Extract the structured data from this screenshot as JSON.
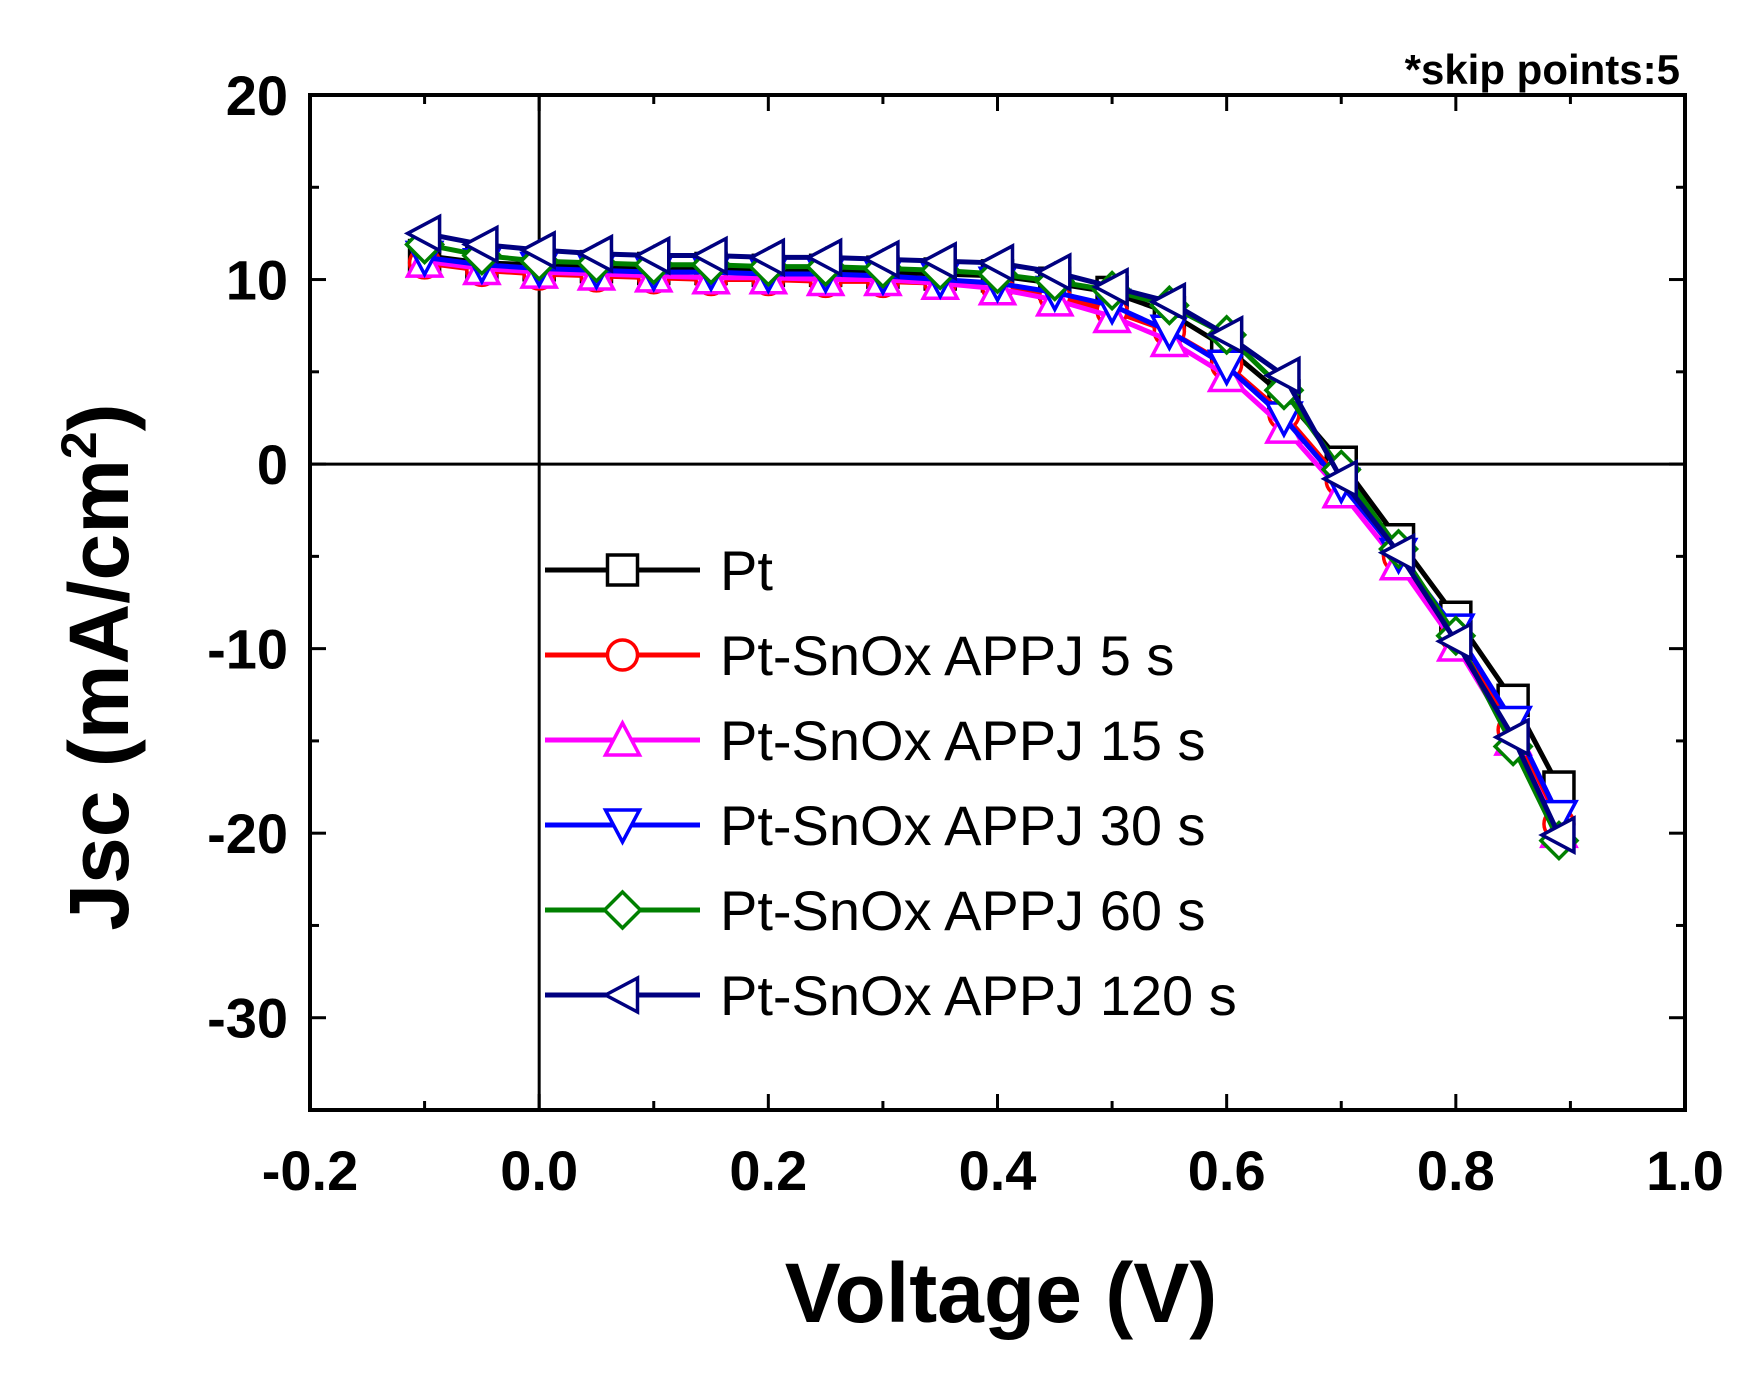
{
  "chart_data": {
    "type": "line",
    "title": "",
    "annotation": "*skip points:5",
    "xlabel": "Voltage (V)",
    "ylabel_main": "Jsc (mA/cm",
    "ylabel_sup": "2",
    "ylabel_close": ")",
    "xlim": [
      -0.2,
      1.0
    ],
    "ylim": [
      -35,
      20
    ],
    "xticks": [
      "-0.2",
      "0.0",
      "0.2",
      "0.4",
      "0.6",
      "0.8",
      "1.0"
    ],
    "yticks": [
      "20",
      "10",
      "0",
      "-10",
      "-20",
      "-30"
    ],
    "legend_position": "lower-left",
    "series": [
      {
        "name": "Pt",
        "color": "#000000",
        "marker": "square",
        "x": [
          -0.1,
          -0.05,
          0.0,
          0.05,
          0.1,
          0.15,
          0.2,
          0.25,
          0.3,
          0.35,
          0.4,
          0.45,
          0.5,
          0.55,
          0.6,
          0.65,
          0.7,
          0.75,
          0.8,
          0.85,
          0.89
        ],
        "y": [
          11.3,
          10.9,
          10.8,
          10.7,
          10.6,
          10.6,
          10.5,
          10.5,
          10.4,
          10.3,
          10.2,
          9.8,
          9.3,
          8.2,
          6.3,
          3.7,
          0.1,
          -4.1,
          -8.3,
          -12.8,
          -17.5
        ]
      },
      {
        "name": "Pt-SnOx APPJ 5 s",
        "color": "#ff0000",
        "marker": "circle",
        "x": [
          -0.1,
          -0.05,
          0.0,
          0.05,
          0.1,
          0.15,
          0.2,
          0.25,
          0.3,
          0.35,
          0.4,
          0.45,
          0.5,
          0.55,
          0.6,
          0.65,
          0.7,
          0.75,
          0.8,
          0.85,
          0.89
        ],
        "y": [
          10.9,
          10.5,
          10.3,
          10.2,
          10.1,
          10.0,
          10.0,
          9.9,
          9.9,
          9.8,
          9.6,
          9.1,
          8.3,
          7.2,
          5.4,
          2.7,
          -0.9,
          -5.0,
          -9.3,
          -14.4,
          -19.5
        ]
      },
      {
        "name": "Pt-SnOx APPJ 15 s",
        "color": "#ff00ff",
        "marker": "triangle-up",
        "x": [
          -0.1,
          -0.05,
          0.0,
          0.05,
          0.1,
          0.15,
          0.2,
          0.25,
          0.3,
          0.35,
          0.4,
          0.45,
          0.5,
          0.55,
          0.6,
          0.65,
          0.7,
          0.75,
          0.8,
          0.85,
          0.89
        ],
        "y": [
          11.0,
          10.6,
          10.4,
          10.3,
          10.2,
          10.1,
          10.1,
          10.0,
          10.0,
          9.8,
          9.5,
          8.9,
          8.0,
          6.7,
          4.8,
          2.0,
          -1.5,
          -5.4,
          -9.8,
          -14.9,
          -19.9
        ]
      },
      {
        "name": "Pt-SnOx APPJ 30 s",
        "color": "#0000ff",
        "marker": "triangle-down",
        "x": [
          -0.1,
          -0.05,
          0.0,
          0.05,
          0.1,
          0.15,
          0.2,
          0.25,
          0.3,
          0.35,
          0.4,
          0.45,
          0.5,
          0.55,
          0.6,
          0.65,
          0.7,
          0.75,
          0.8,
          0.85,
          0.89
        ],
        "y": [
          11.2,
          10.8,
          10.6,
          10.5,
          10.4,
          10.4,
          10.3,
          10.3,
          10.2,
          10.0,
          9.8,
          9.3,
          8.6,
          7.2,
          5.3,
          2.5,
          -1.1,
          -4.9,
          -9.0,
          -14.0,
          -19.1
        ]
      },
      {
        "name": "Pt-SnOx APPJ 60 s",
        "color": "#008000",
        "marker": "diamond",
        "x": [
          -0.1,
          -0.05,
          0.0,
          0.05,
          0.1,
          0.15,
          0.2,
          0.25,
          0.3,
          0.35,
          0.4,
          0.45,
          0.5,
          0.55,
          0.6,
          0.65,
          0.7,
          0.75,
          0.8,
          0.85,
          0.89
        ],
        "y": [
          11.9,
          11.3,
          11.0,
          10.9,
          10.8,
          10.8,
          10.7,
          10.7,
          10.6,
          10.5,
          10.3,
          9.9,
          9.4,
          8.6,
          7.0,
          4.0,
          -0.3,
          -4.6,
          -9.3,
          -15.3,
          -20.4
        ]
      },
      {
        "name": "Pt-SnOx APPJ 120 s",
        "color": "#000080",
        "marker": "triangle-left",
        "x": [
          -0.1,
          -0.05,
          0.0,
          0.05,
          0.1,
          0.15,
          0.2,
          0.25,
          0.3,
          0.35,
          0.4,
          0.45,
          0.5,
          0.55,
          0.6,
          0.65,
          0.7,
          0.75,
          0.8,
          0.85,
          0.89
        ],
        "y": [
          12.5,
          11.9,
          11.6,
          11.4,
          11.3,
          11.3,
          11.2,
          11.2,
          11.1,
          11.0,
          10.9,
          10.4,
          9.6,
          8.8,
          7.0,
          4.8,
          -0.8,
          -4.8,
          -9.6,
          -14.8,
          -20.1
        ]
      }
    ]
  }
}
